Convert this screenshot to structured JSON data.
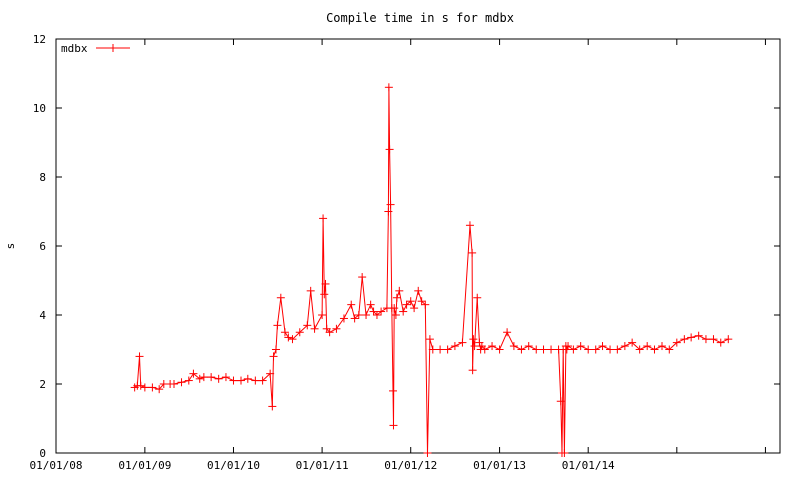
{
  "chart_data": {
    "type": "line",
    "title": "Compile time in s for mdbx",
    "xlabel": "",
    "ylabel": "s",
    "ylim": [
      0,
      12
    ],
    "yticks": [
      "0",
      "2",
      "4",
      "6",
      "8",
      "10",
      "12"
    ],
    "xlim": [
      "2008-01-01",
      "2016-03-01"
    ],
    "xticks": [
      "01/01/08",
      "01/01/09",
      "01/01/10",
      "01/01/11",
      "01/01/12",
      "01/01/13",
      "01/01/14"
    ],
    "legend": {
      "placement": "top-left"
    },
    "grid": false,
    "series": [
      {
        "name": "mdbx",
        "color": "#ff0000",
        "marker": "plus",
        "x": [
          "2008-11-20",
          "2008-12-01",
          "2008-12-10",
          "2008-12-15",
          "2009-01-01",
          "2009-02-01",
          "2009-03-01",
          "2009-03-20",
          "2009-04-15",
          "2009-05-01",
          "2009-06-01",
          "2009-07-01",
          "2009-07-20",
          "2009-08-15",
          "2009-09-01",
          "2009-10-01",
          "2009-11-01",
          "2009-12-01",
          "2010-01-01",
          "2010-02-01",
          "2010-03-01",
          "2010-04-01",
          "2010-05-01",
          "2010-06-01",
          "2010-06-10",
          "2010-06-15",
          "2010-06-25",
          "2010-07-01",
          "2010-07-15",
          "2010-08-01",
          "2010-08-15",
          "2010-09-01",
          "2010-10-01",
          "2010-11-01",
          "2010-11-15",
          "2010-12-01",
          "2011-01-01",
          "2011-01-05",
          "2011-01-10",
          "2011-01-15",
          "2011-01-20",
          "2011-02-01",
          "2011-03-01",
          "2011-04-01",
          "2011-05-01",
          "2011-05-15",
          "2011-06-01",
          "2011-06-15",
          "2011-07-01",
          "2011-07-20",
          "2011-08-01",
          "2011-08-15",
          "2011-09-01",
          "2011-09-25",
          "2011-10-01",
          "2011-10-03",
          "2011-10-06",
          "2011-10-10",
          "2011-10-15",
          "2011-10-20",
          "2011-10-22",
          "2011-10-25",
          "2011-11-01",
          "2011-11-05",
          "2011-11-15",
          "2011-12-01",
          "2011-12-15",
          "2012-01-01",
          "2012-01-15",
          "2012-02-01",
          "2012-02-15",
          "2012-03-01",
          "2012-03-10",
          "2012-03-20",
          "2012-04-01",
          "2012-05-01",
          "2012-06-01",
          "2012-07-01",
          "2012-08-01",
          "2012-09-01",
          "2012-09-10",
          "2012-09-12",
          "2012-09-15",
          "2012-09-20",
          "2012-10-01",
          "2012-10-10",
          "2012-10-15",
          "2012-10-20",
          "2012-11-01",
          "2012-12-01",
          "2013-01-01",
          "2013-02-01",
          "2013-03-01",
          "2013-04-01",
          "2013-05-01",
          "2013-06-01",
          "2013-07-01",
          "2013-08-01",
          "2013-09-01",
          "2013-09-10",
          "2013-09-15",
          "2013-09-20",
          "2013-09-25",
          "2013-10-01",
          "2013-10-05",
          "2013-10-10",
          "2013-11-01",
          "2013-12-01",
          "2014-01-01",
          "2014-02-01",
          "2014-03-01",
          "2014-04-01",
          "2014-05-01",
          "2014-06-01",
          "2014-07-01",
          "2014-08-01",
          "2014-09-01",
          "2014-10-01",
          "2014-11-01",
          "2014-12-01",
          "2015-01-01",
          "2015-02-01",
          "2015-03-01",
          "2015-04-01",
          "2015-05-01",
          "2015-06-01",
          "2015-07-01",
          "2015-08-01"
        ],
        "values": [
          1.9,
          1.95,
          2.8,
          1.95,
          1.9,
          1.9,
          1.85,
          2.0,
          2.0,
          2.0,
          2.05,
          2.1,
          2.3,
          2.15,
          2.2,
          2.2,
          2.15,
          2.2,
          2.1,
          2.1,
          2.15,
          2.1,
          2.1,
          2.3,
          1.35,
          2.8,
          3.0,
          3.7,
          4.5,
          3.5,
          3.35,
          3.3,
          3.5,
          3.7,
          4.7,
          3.6,
          4.0,
          6.8,
          4.6,
          4.9,
          3.6,
          3.5,
          3.6,
          3.9,
          4.3,
          3.9,
          4.0,
          5.1,
          4.0,
          4.3,
          4.1,
          4.0,
          4.1,
          4.2,
          7.0,
          10.6,
          8.8,
          7.2,
          4.2,
          1.8,
          0.8,
          4.2,
          4.0,
          4.5,
          4.7,
          4.1,
          4.3,
          4.4,
          4.2,
          4.7,
          4.4,
          4.3,
          0.0,
          3.3,
          3.0,
          3.0,
          3.0,
          3.1,
          3.2,
          6.6,
          5.8,
          2.4,
          3.3,
          3.1,
          4.5,
          3.2,
          3.0,
          3.1,
          3.0,
          3.1,
          3.0,
          3.5,
          3.1,
          3.0,
          3.1,
          3.0,
          3.0,
          3.0,
          3.0,
          1.5,
          0.0,
          3.0,
          0.0,
          3.1,
          3.0,
          3.1,
          3.0,
          3.1,
          3.0,
          3.0,
          3.1,
          3.0,
          3.0,
          3.1,
          3.2,
          3.0,
          3.1,
          3.0,
          3.1,
          3.0,
          3.2,
          3.3,
          3.35,
          3.4,
          3.3,
          3.3,
          3.2,
          3.3
        ]
      }
    ]
  }
}
